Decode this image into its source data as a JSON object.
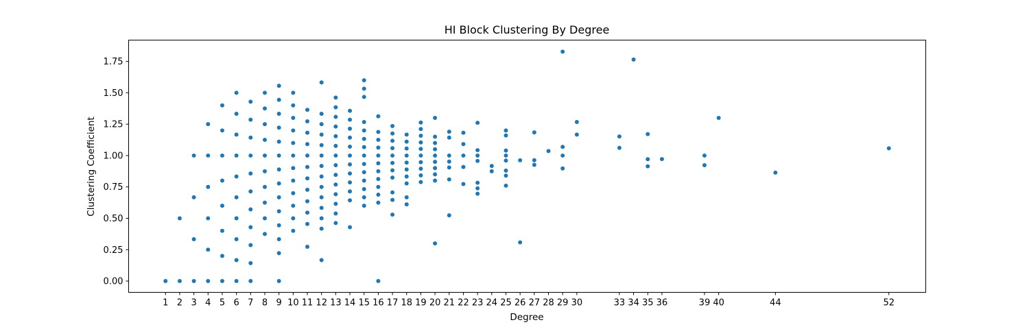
{
  "chart_data": {
    "type": "scatter",
    "title": "HI Block Clustering By Degree",
    "xlabel": "Degree",
    "ylabel": "Clustering Coefficient",
    "xlim": [
      -1.6,
      54.6
    ],
    "ylim": [
      -0.09,
      1.92
    ],
    "xticks": [
      1,
      2,
      3,
      4,
      5,
      6,
      7,
      8,
      9,
      10,
      11,
      12,
      13,
      14,
      15,
      16,
      17,
      18,
      19,
      20,
      21,
      22,
      23,
      24,
      25,
      26,
      27,
      28,
      29,
      30,
      33,
      34,
      35,
      36,
      39,
      40,
      44,
      52
    ],
    "yticks": [
      0.0,
      0.25,
      0.5,
      0.75,
      1.0,
      1.25,
      1.5,
      1.75
    ],
    "ytick_labels": [
      "0.00",
      "0.25",
      "0.50",
      "0.75",
      "1.00",
      "1.25",
      "1.50",
      "1.75"
    ],
    "grid": false,
    "marker_color": "#1f77b4",
    "series": [
      {
        "points": [
          {
            "x": 1,
            "y": [
              0
            ]
          },
          {
            "x": 2,
            "y": [
              0,
              0.5
            ]
          },
          {
            "x": 3,
            "y": [
              0,
              0.333,
              0.667,
              1.0
            ]
          },
          {
            "x": 4,
            "y": [
              0,
              0.25,
              0.5,
              0.75,
              1.0,
              1.25
            ]
          },
          {
            "x": 5,
            "y": [
              0,
              0.2,
              0.4,
              0.6,
              0.8,
              1.0,
              1.2,
              1.4
            ]
          },
          {
            "x": 6,
            "y": [
              0,
              0.167,
              0.333,
              0.5,
              0.667,
              0.833,
              1.0,
              1.167,
              1.333,
              1.5
            ]
          },
          {
            "x": 7,
            "y": [
              0,
              0.143,
              0.286,
              0.429,
              0.571,
              0.714,
              0.857,
              1.0,
              1.143,
              1.286,
              1.429
            ]
          },
          {
            "x": 8,
            "y": [
              0.375,
              0.5,
              0.625,
              0.75,
              0.875,
              1.0,
              1.125,
              1.25,
              1.375,
              1.5
            ]
          },
          {
            "x": 9,
            "y": [
              0,
              0.222,
              0.333,
              0.444,
              0.556,
              0.667,
              0.778,
              0.889,
              1.0,
              1.111,
              1.222,
              1.333,
              1.444,
              1.556
            ]
          },
          {
            "x": 10,
            "y": [
              0.4,
              0.5,
              0.6,
              0.7,
              0.8,
              0.9,
              1.0,
              1.1,
              1.2,
              1.3,
              1.4,
              1.5
            ]
          },
          {
            "x": 11,
            "y": [
              0.273,
              0.455,
              0.545,
              0.636,
              0.727,
              0.818,
              0.909,
              1.0,
              1.091,
              1.182,
              1.273,
              1.364
            ]
          },
          {
            "x": 12,
            "y": [
              0.167,
              0.417,
              0.5,
              0.583,
              0.667,
              0.75,
              0.833,
              0.917,
              1.0,
              1.083,
              1.167,
              1.25,
              1.333,
              1.583
            ]
          },
          {
            "x": 13,
            "y": [
              0.462,
              0.538,
              0.615,
              0.692,
              0.769,
              0.846,
              0.923,
              1.0,
              1.077,
              1.154,
              1.231,
              1.308,
              1.385,
              1.462
            ]
          },
          {
            "x": 14,
            "y": [
              0.429,
              0.643,
              0.714,
              0.786,
              0.857,
              0.929,
              1.0,
              1.071,
              1.143,
              1.214,
              1.286,
              1.357
            ]
          },
          {
            "x": 15,
            "y": [
              0.6,
              0.667,
              0.733,
              0.8,
              0.867,
              0.933,
              1.0,
              1.067,
              1.133,
              1.2,
              1.267,
              1.467,
              1.533,
              1.6
            ]
          },
          {
            "x": 16,
            "y": [
              0,
              0.625,
              0.688,
              0.75,
              0.813,
              0.875,
              0.938,
              1.0,
              1.063,
              1.125,
              1.188,
              1.313
            ]
          },
          {
            "x": 17,
            "y": [
              0.529,
              0.647,
              0.706,
              0.824,
              0.882,
              0.941,
              1.0,
              1.059,
              1.118,
              1.176,
              1.235
            ]
          },
          {
            "x": 18,
            "y": [
              0.611,
              0.667,
              0.778,
              0.833,
              0.889,
              0.944,
              1.0,
              1.056,
              1.111,
              1.167
            ]
          },
          {
            "x": 19,
            "y": [
              0.789,
              0.842,
              0.895,
              0.947,
              1.0,
              1.053,
              1.105,
              1.158,
              1.211,
              1.263
            ]
          },
          {
            "x": 20,
            "y": [
              0.3,
              0.8,
              0.85,
              0.9,
              0.95,
              1.0,
              1.05,
              1.1,
              1.15,
              1.3
            ]
          },
          {
            "x": 21,
            "y": [
              0.524,
              0.81,
              0.905,
              0.952,
              1.0,
              1.143,
              1.19
            ]
          },
          {
            "x": 22,
            "y": [
              0.773,
              0.909,
              1.0,
              1.091,
              1.182
            ]
          },
          {
            "x": 23,
            "y": [
              0.696,
              0.739,
              0.783,
              0.957,
              1.0,
              1.043,
              1.261
            ]
          },
          {
            "x": 24,
            "y": [
              0.875,
              0.917
            ]
          },
          {
            "x": 25,
            "y": [
              0.76,
              0.84,
              0.88,
              0.96,
              1.0,
              1.04,
              1.16,
              1.2
            ]
          },
          {
            "x": 26,
            "y": [
              0.308,
              0.962
            ]
          },
          {
            "x": 27,
            "y": [
              0.926,
              0.963,
              1.185
            ]
          },
          {
            "x": 28,
            "y": [
              1.036
            ]
          },
          {
            "x": 29,
            "y": [
              0.897,
              1.0,
              1.069,
              1.828
            ]
          },
          {
            "x": 30,
            "y": [
              1.167,
              1.267
            ]
          },
          {
            "x": 33,
            "y": [
              1.061,
              1.152
            ]
          },
          {
            "x": 34,
            "y": [
              1.765
            ]
          },
          {
            "x": 35,
            "y": [
              0.914,
              0.971,
              1.171
            ]
          },
          {
            "x": 36,
            "y": [
              0.972
            ]
          },
          {
            "x": 39,
            "y": [
              0.923,
              1.0
            ]
          },
          {
            "x": 40,
            "y": [
              1.3
            ]
          },
          {
            "x": 44,
            "y": [
              0.864
            ]
          },
          {
            "x": 52,
            "y": [
              1.058
            ]
          }
        ]
      }
    ]
  }
}
